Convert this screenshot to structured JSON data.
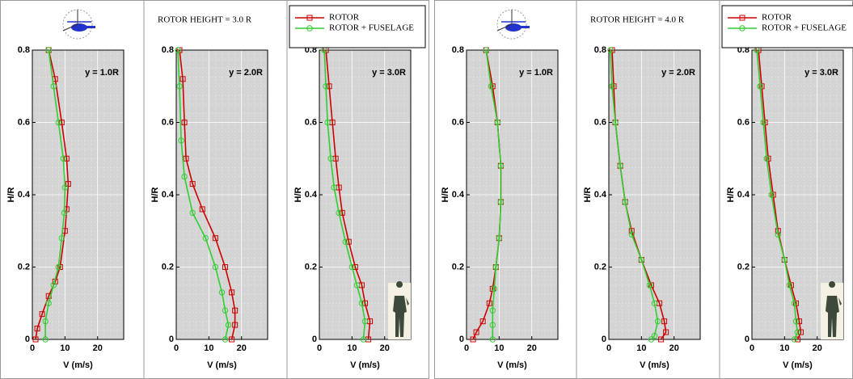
{
  "chart_data": [
    {
      "type": "line",
      "annotation": "y = 1.0R",
      "xlabel": "V (m/s)",
      "ylabel": "H/R",
      "xlim": [
        0,
        28
      ],
      "ylim": [
        0,
        0.8
      ],
      "xticks": [
        0,
        10,
        20
      ],
      "yticks": [
        0,
        0.2,
        0.4,
        0.6,
        0.8
      ],
      "grid": true,
      "series": [
        {
          "color": "#cc0000",
          "marker": "square",
          "x": [
            5,
            7,
            9,
            10.5,
            11,
            10.5,
            10,
            8.5,
            7,
            5,
            3,
            1.5,
            1
          ],
          "values": [
            0.8,
            0.72,
            0.6,
            0.5,
            0.43,
            0.36,
            0.3,
            0.2,
            0.16,
            0.12,
            0.07,
            0.03,
            0
          ]
        },
        {
          "color": "#33cc33",
          "marker": "circle",
          "x": [
            5,
            6.5,
            8,
            9.5,
            10,
            9.8,
            9,
            8,
            6.5,
            5,
            4,
            4
          ],
          "values": [
            0.8,
            0.7,
            0.6,
            0.5,
            0.42,
            0.35,
            0.28,
            0.2,
            0.15,
            0.1,
            0.05,
            0
          ]
        }
      ]
    },
    {
      "type": "line",
      "title": "ROTOR HEIGHT = 3.0 R",
      "annotation": "y = 2.0R",
      "xlabel": "V (m/s)",
      "ylabel": "H/R",
      "xlim": [
        0,
        28
      ],
      "ylim": [
        0,
        0.8
      ],
      "xticks": [
        0,
        10,
        20
      ],
      "yticks": [
        0,
        0.2,
        0.4,
        0.6,
        0.8
      ],
      "grid": true,
      "series": [
        {
          "color": "#cc0000",
          "marker": "square",
          "x": [
            1,
            2,
            2.5,
            3,
            5,
            8,
            12,
            15,
            17,
            18,
            18,
            17
          ],
          "values": [
            0.8,
            0.72,
            0.6,
            0.5,
            0.43,
            0.36,
            0.28,
            0.2,
            0.13,
            0.08,
            0.04,
            0
          ]
        },
        {
          "color": "#33cc33",
          "marker": "circle",
          "x": [
            0.5,
            1,
            1.5,
            2.5,
            5,
            9,
            12,
            14,
            15,
            16,
            15
          ],
          "values": [
            0.8,
            0.7,
            0.55,
            0.45,
            0.35,
            0.28,
            0.2,
            0.13,
            0.08,
            0.04,
            0
          ]
        }
      ]
    },
    {
      "type": "line",
      "annotation": "y = 3.0R",
      "xlabel": "V (m/s)",
      "ylabel": "H/R",
      "xlim": [
        0,
        28
      ],
      "ylim": [
        0,
        0.8
      ],
      "xticks": [
        0,
        10,
        20
      ],
      "yticks": [
        0,
        0.2,
        0.4,
        0.6,
        0.8
      ],
      "grid": true,
      "legend": "top",
      "series": [
        {
          "name": "ROTOR",
          "color": "#cc0000",
          "marker": "square",
          "x": [
            2,
            3,
            4,
            5,
            6,
            7,
            9,
            11,
            13,
            14,
            15.5,
            15
          ],
          "values": [
            0.8,
            0.7,
            0.6,
            0.5,
            0.42,
            0.35,
            0.27,
            0.2,
            0.15,
            0.1,
            0.05,
            0
          ]
        },
        {
          "name": "ROTOR + FUSELAGE",
          "color": "#33cc33",
          "marker": "circle",
          "x": [
            1.5,
            2,
            2.5,
            3.5,
            4.5,
            6,
            8,
            10,
            11.5,
            13,
            14,
            13.5
          ],
          "values": [
            0.8,
            0.7,
            0.6,
            0.5,
            0.42,
            0.35,
            0.27,
            0.2,
            0.15,
            0.1,
            0.05,
            0
          ]
        }
      ]
    },
    {
      "type": "line",
      "annotation": "y = 1.0R",
      "xlabel": "V (m/s)",
      "ylabel": "H/R",
      "xlim": [
        0,
        28
      ],
      "ylim": [
        0,
        0.8
      ],
      "xticks": [
        0,
        10,
        20
      ],
      "yticks": [
        0,
        0.2,
        0.4,
        0.6,
        0.8
      ],
      "grid": true,
      "series": [
        {
          "color": "#cc0000",
          "marker": "square",
          "x": [
            6,
            8,
            9.5,
            10.5,
            10.5,
            10,
            9,
            8,
            7,
            5,
            3,
            2
          ],
          "values": [
            0.8,
            0.7,
            0.6,
            0.48,
            0.38,
            0.28,
            0.2,
            0.14,
            0.1,
            0.05,
            0.02,
            0
          ]
        },
        {
          "color": "#33cc33",
          "marker": "circle",
          "x": [
            6,
            7.5,
            9.5,
            10.5,
            10.5,
            10,
            9,
            8.5,
            8,
            8,
            8
          ],
          "values": [
            0.8,
            0.7,
            0.6,
            0.48,
            0.38,
            0.28,
            0.2,
            0.14,
            0.08,
            0.04,
            0
          ]
        }
      ]
    },
    {
      "type": "line",
      "title": "ROTOR HEIGHT = 4.0 R",
      "annotation": "y = 2.0R",
      "xlabel": "V (m/s)",
      "ylabel": "H/R",
      "xlim": [
        0,
        28
      ],
      "ylim": [
        0,
        0.8
      ],
      "xticks": [
        0,
        10,
        20
      ],
      "yticks": [
        0,
        0.2,
        0.4,
        0.6,
        0.8
      ],
      "grid": true,
      "series": [
        {
          "color": "#cc0000",
          "marker": "square",
          "x": [
            1,
            1.5,
            2,
            3.5,
            5,
            7,
            10,
            13,
            15.5,
            17,
            17.5,
            16
          ],
          "values": [
            0.8,
            0.7,
            0.6,
            0.48,
            0.38,
            0.3,
            0.22,
            0.15,
            0.1,
            0.05,
            0.02,
            0
          ]
        },
        {
          "color": "#33cc33",
          "marker": "circle",
          "x": [
            0.5,
            1,
            2,
            3.5,
            5,
            7,
            10,
            12.5,
            14,
            15,
            14,
            13
          ],
          "values": [
            0.8,
            0.7,
            0.6,
            0.48,
            0.38,
            0.29,
            0.22,
            0.15,
            0.1,
            0.05,
            0.01,
            0
          ]
        }
      ]
    },
    {
      "type": "line",
      "annotation": "y = 3.0R",
      "xlabel": "V (m/s)",
      "ylabel": "H/R",
      "xlim": [
        0,
        28
      ],
      "ylim": [
        0,
        0.8
      ],
      "xticks": [
        0,
        10,
        20
      ],
      "yticks": [
        0,
        0.2,
        0.4,
        0.6,
        0.8
      ],
      "grid": true,
      "legend": "top",
      "series": [
        {
          "name": "ROTOR",
          "color": "#cc0000",
          "marker": "square",
          "x": [
            2,
            3,
            4,
            5,
            6.5,
            8,
            10,
            12,
            13.5,
            14.5,
            15,
            14
          ],
          "values": [
            0.8,
            0.7,
            0.6,
            0.5,
            0.4,
            0.3,
            0.22,
            0.15,
            0.1,
            0.05,
            0.02,
            0
          ]
        },
        {
          "name": "ROTOR + FUSELAGE",
          "color": "#33cc33",
          "marker": "circle",
          "x": [
            1.5,
            2.5,
            3.5,
            4.5,
            6,
            8,
            10,
            11.5,
            13,
            13.5,
            14,
            13
          ],
          "values": [
            0.8,
            0.7,
            0.6,
            0.5,
            0.4,
            0.29,
            0.22,
            0.15,
            0.1,
            0.05,
            0.02,
            0
          ]
        }
      ]
    }
  ]
}
